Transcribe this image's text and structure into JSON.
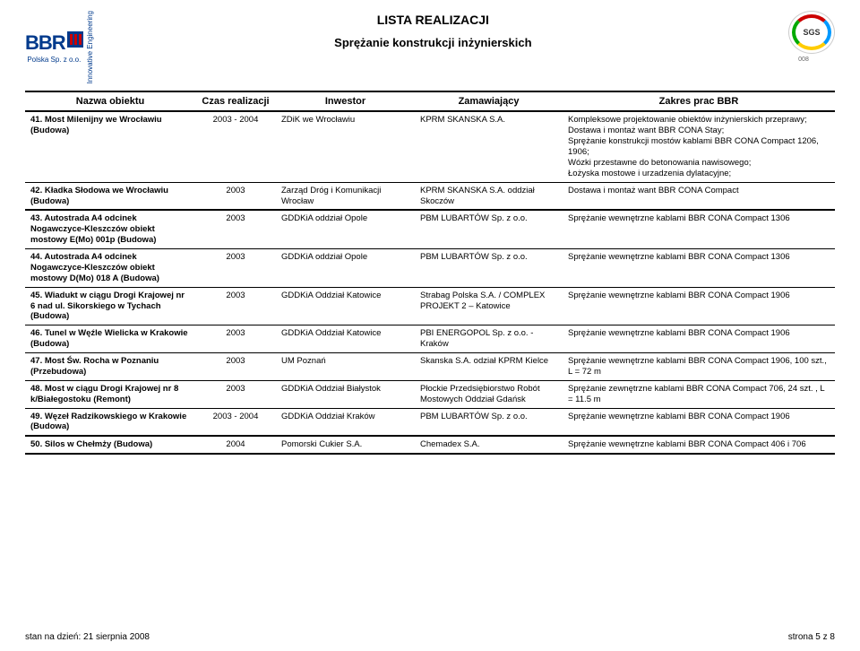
{
  "header": {
    "logo_label": "BBR",
    "logo_sub": "Polska Sp. z o.o.",
    "logo_vert": "Innovative Engineering",
    "title_main": "LISTA REALIZACJI",
    "title_sub": "Sprężanie konstrukcji inżynierskich",
    "badge_text": "SGS",
    "badge_num": "008"
  },
  "columns": [
    "Nazwa obiektu",
    "Czas realizacji",
    "Inwestor",
    "Zamawiający",
    "Zakres prac BBR"
  ],
  "rows": [
    {
      "n": "41.",
      "name": "Most Milenijny we Wrocławiu (Budowa)",
      "time": "2003 - 2004",
      "investor": "ZDiK we Wrocławiu",
      "client": "KPRM SKANSKA S.A.",
      "scope": "Kompleksowe projektowanie obiektów inżynierskich przeprawy;\nDostawa i montaż want BBR CONA Stay;\nSprężanie konstrukcji mostów kablami BBR CONA Compact 1206, 1906;\nWózki przestawne do betonowania nawisowego;\nŁożyska mostowe i urzadzenia dylatacyjne;",
      "grp": "start"
    },
    {
      "n": "42.",
      "name": "Kładka Słodowa we Wrocławiu (Budowa)",
      "time": "2003",
      "investor": "Zarząd Dróg i Komunikacji Wrocław",
      "client": "KPRM SKANSKA S.A. oddział Skoczów",
      "scope": "Dostawa i montaż want BBR CONA Compact",
      "grp": "end"
    },
    {
      "n": "43.",
      "name": "Autostrada A4 odcinek Nogawczyce-Kleszczów obiekt mostowy E(Mo) 001p (Budowa)",
      "time": "2003",
      "investor": "GDDKiA oddział Opole",
      "client": "PBM LUBARTÓW Sp. z o.o.",
      "scope": "Sprężanie wewnętrzne kablami BBR CONA Compact 1306",
      "grp": "start"
    },
    {
      "n": "44.",
      "name": "Autostrada A4 odcinek Nogawczyce-Kleszczów obiekt mostowy D(Mo) 018 A (Budowa)",
      "time": "2003",
      "investor": "GDDKiA oddział Opole",
      "client": "PBM LUBARTÓW Sp. z o.o.",
      "scope": "Sprężanie wewnętrzne kablami BBR CONA Compact 1306"
    },
    {
      "n": "45.",
      "name": "Wiadukt w ciągu Drogi Krajowej nr 6 nad ul. Sikorskiego w Tychach (Budowa)",
      "time": "2003",
      "investor": "GDDKiA Oddział Katowice",
      "client": "Strabag Polska S.A. / COMPLEX PROJEKT 2 – Katowice",
      "scope": "Sprężanie wewnętrzne kablami BBR CONA Compact 1906"
    },
    {
      "n": "46.",
      "name": "Tunel w Węźle Wielicka w Krakowie (Budowa)",
      "time": "2003",
      "investor": "GDDKiA Oddział Katowice",
      "client": "PBI ENERGOPOL Sp. z o.o. - Kraków",
      "scope": "Sprężanie wewnętrzne kablami BBR CONA Compact 1906"
    },
    {
      "n": "47.",
      "name": "Most Św. Rocha w Poznaniu (Przebudowa)",
      "time": "2003",
      "investor": "UM Poznań",
      "client": "Skanska S.A. odział KPRM Kielce",
      "scope": "Sprężanie wewnętrzne kablami BBR CONA Compact 1906, 100 szt., L = 72 m"
    },
    {
      "n": "48.",
      "name": "Most w ciągu Drogi Krajowej nr 8 k/Białegostoku (Remont)",
      "time": "2003",
      "investor": "GDDKiA Oddział Białystok",
      "client": "Płockie Przedsiębiorstwo Robót Mostowych Oddział Gdańsk",
      "scope": "Sprężanie zewnętrzne kablami BBR CONA Compact 706, 24 szt. , L = 11.5 m"
    },
    {
      "n": "49.",
      "name": "Węzeł Radzikowskiego w Krakowie (Budowa)",
      "time": "2003 - 2004",
      "investor": "GDDKiA Oddział Kraków",
      "client": "PBM LUBARTÓW Sp. z o.o.",
      "scope": "Sprężanie wewnętrzne kablami BBR CONA Compact 1906",
      "grp": "end"
    },
    {
      "n": "50.",
      "name": "Silos w Chełmży (Budowa)",
      "time": "2004",
      "investor": "Pomorski Cukier S.A.",
      "client": "Chemadex S.A.",
      "scope": "Sprężanie wewnętrzne kablami BBR CONA Compact 406 i 706",
      "grp": "both"
    }
  ],
  "footer": {
    "left": "stan na dzień: 21 sierpnia 2008",
    "right": "strona 5 z 8"
  }
}
